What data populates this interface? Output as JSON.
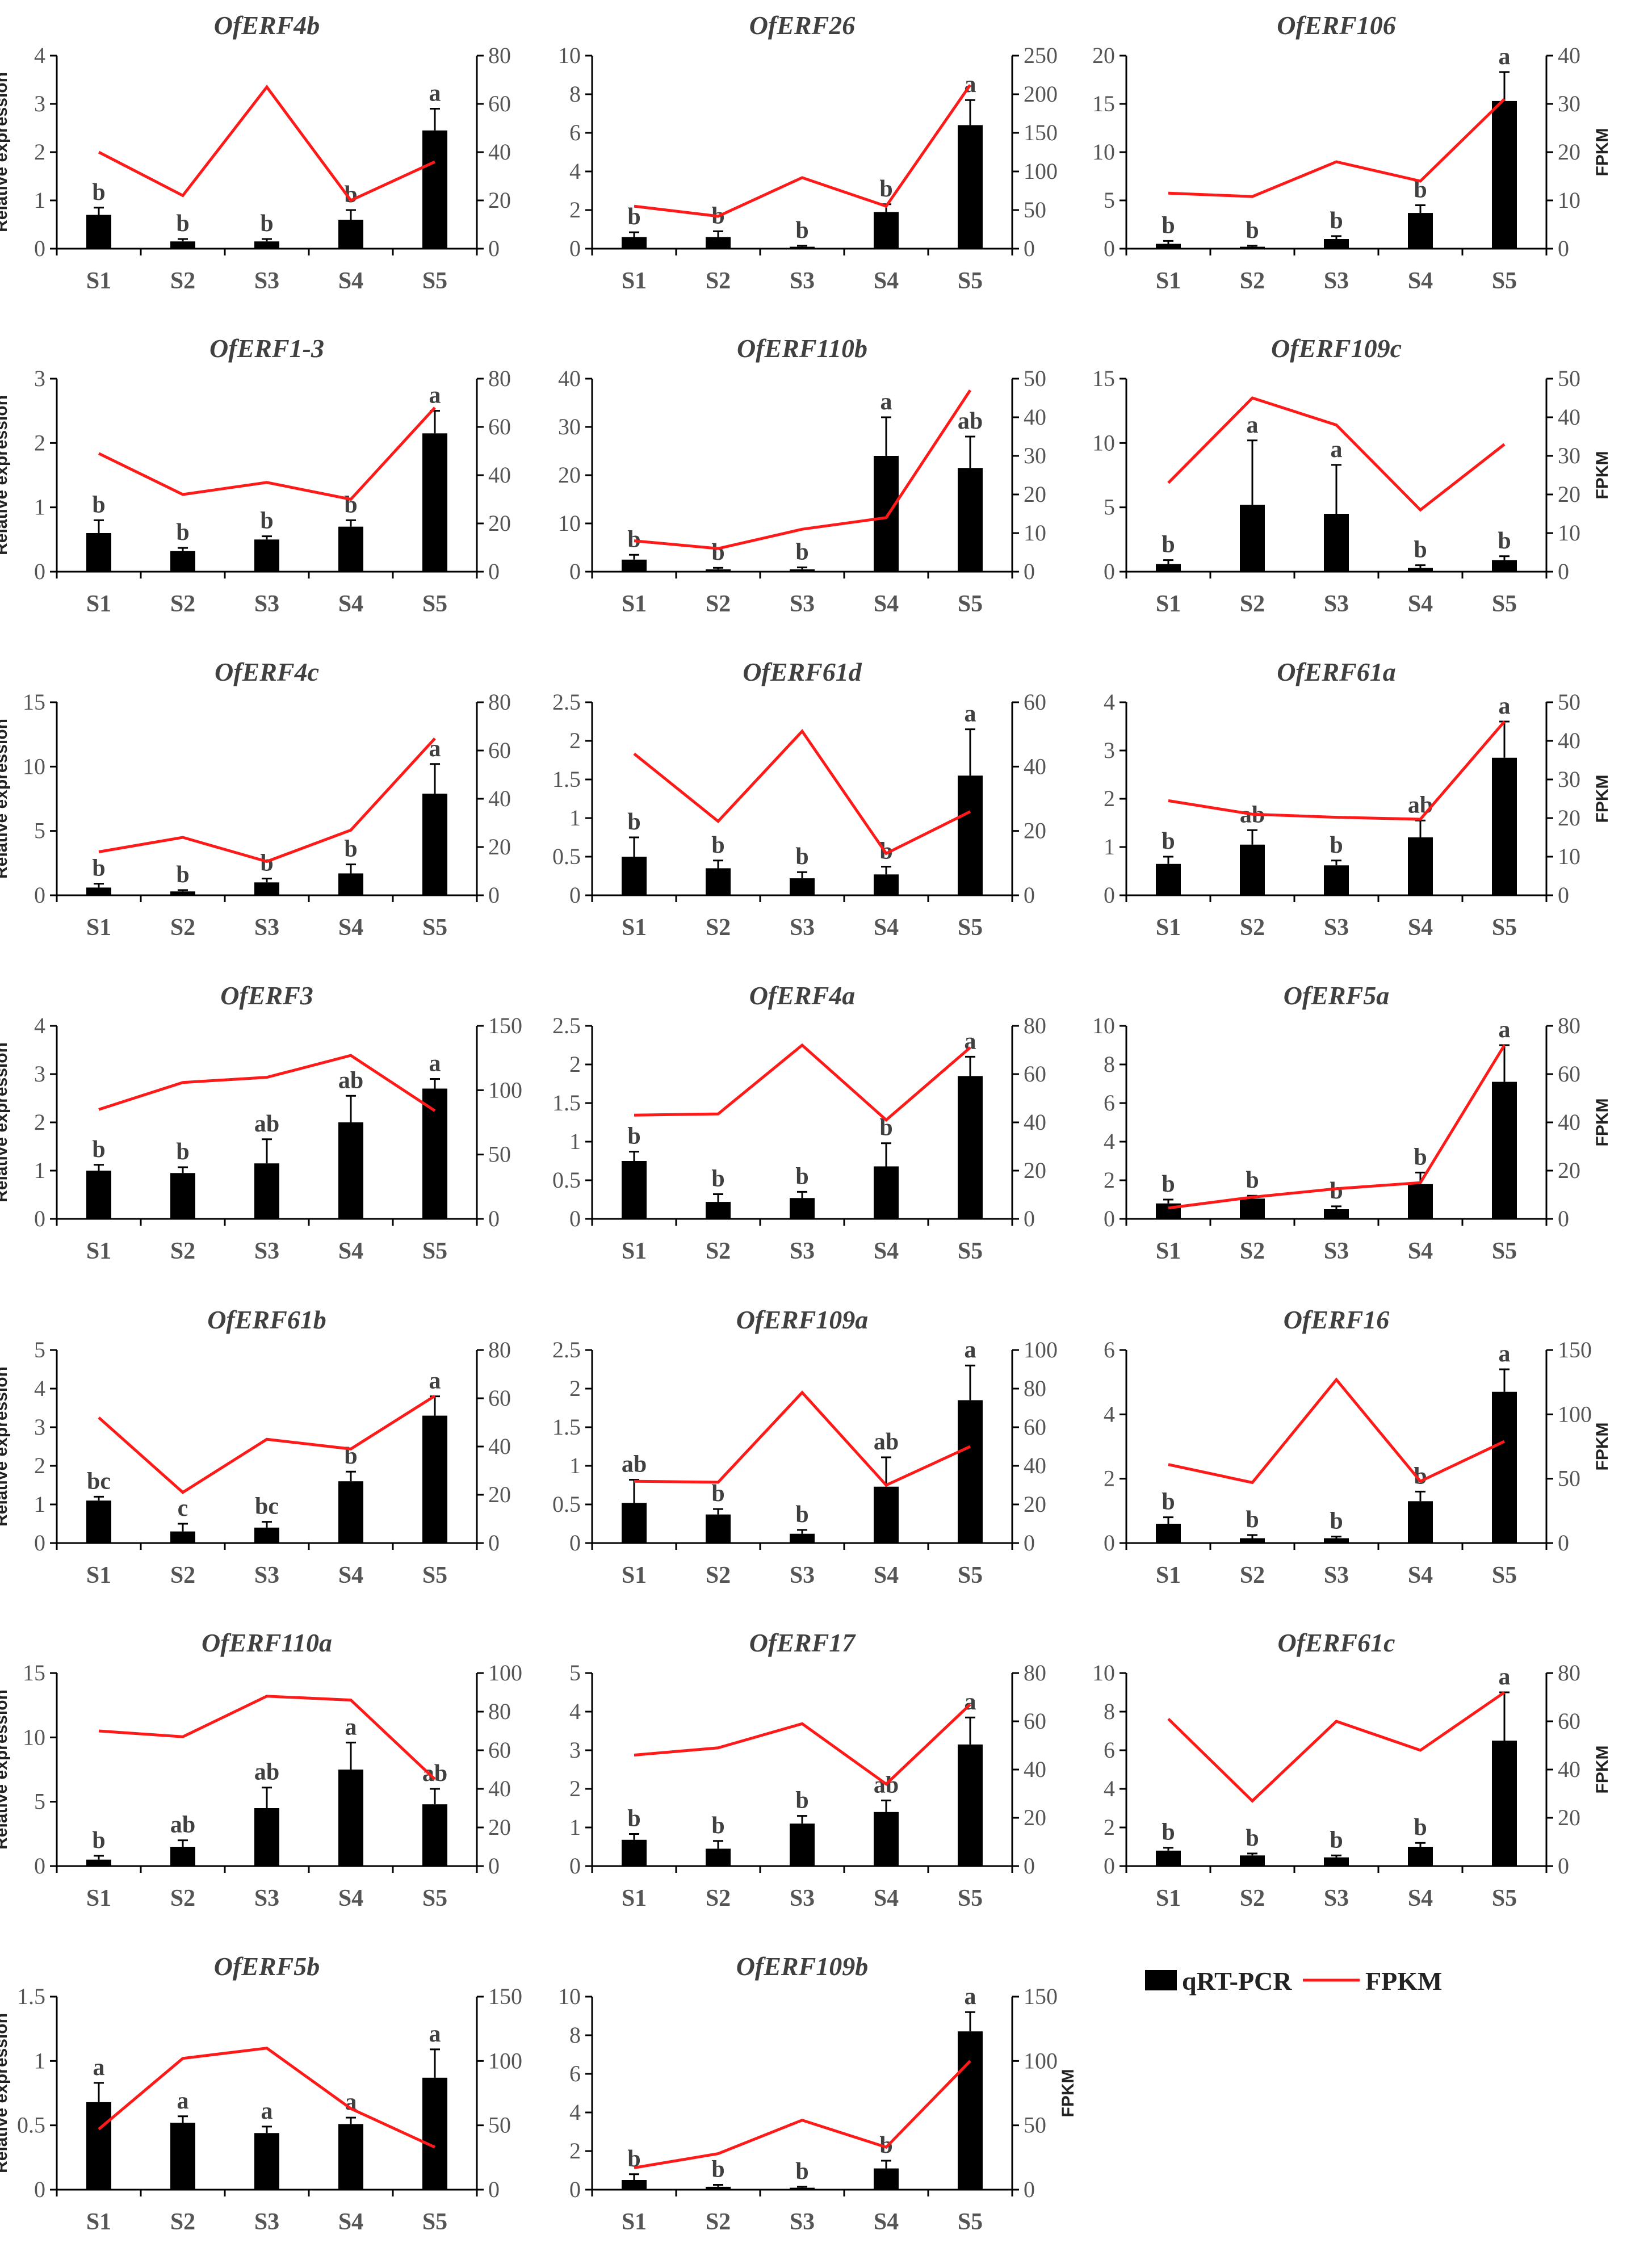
{
  "legend": {
    "bar_label": "qRT-PCR",
    "line_label": "FPKM"
  },
  "colors": {
    "bar": "#000000",
    "line": "#ff1a1a",
    "axis": "#000000"
  },
  "chart_data": [
    {
      "type": "bar+line",
      "title": "OfERF4b",
      "categories": [
        "S1",
        "S2",
        "S3",
        "S4",
        "S5"
      ],
      "bar_values": [
        0.7,
        0.15,
        0.15,
        0.6,
        2.45
      ],
      "bar_errors": [
        0.15,
        0.05,
        0.05,
        0.2,
        0.45
      ],
      "letters": [
        "b",
        "b",
        "b",
        "b",
        "a"
      ],
      "line_values": [
        40,
        22,
        67,
        20,
        36
      ],
      "ylim": [
        0,
        4
      ],
      "yticks": [
        0,
        1,
        2,
        3,
        4
      ],
      "y2lim": [
        0,
        80
      ],
      "y2ticks": [
        0,
        20,
        40,
        60,
        80
      ],
      "ylabel": "Relative expression",
      "y2label": ""
    },
    {
      "type": "bar+line",
      "title": "OfERF26",
      "categories": [
        "S1",
        "S2",
        "S3",
        "S4",
        "S5"
      ],
      "bar_values": [
        0.6,
        0.6,
        0.1,
        1.9,
        6.4
      ],
      "bar_errors": [
        0.25,
        0.3,
        0.05,
        0.4,
        1.3
      ],
      "letters": [
        "b",
        "b",
        "b",
        "b",
        "a"
      ],
      "line_values": [
        55,
        42,
        92,
        55,
        212
      ],
      "ylim": [
        0,
        10
      ],
      "yticks": [
        0,
        2,
        4,
        6,
        8,
        10
      ],
      "y2lim": [
        0,
        250
      ],
      "y2ticks": [
        0,
        50,
        100,
        150,
        200,
        250
      ],
      "ylabel": "",
      "y2label": ""
    },
    {
      "type": "bar+line",
      "title": "OfERF106",
      "categories": [
        "S1",
        "S2",
        "S3",
        "S4",
        "S5"
      ],
      "bar_values": [
        0.5,
        0.2,
        1.0,
        3.7,
        15.3
      ],
      "bar_errors": [
        0.3,
        0.1,
        0.3,
        0.8,
        3.0
      ],
      "letters": [
        "b",
        "b",
        "b",
        "b",
        "a"
      ],
      "line_values": [
        11.5,
        10.8,
        18,
        14,
        31
      ],
      "ylim": [
        0,
        20
      ],
      "yticks": [
        0,
        5,
        10,
        15,
        20
      ],
      "y2lim": [
        0,
        40
      ],
      "y2ticks": [
        0,
        10,
        20,
        30,
        40
      ],
      "ylabel": "",
      "y2label": "FPKM"
    },
    {
      "type": "bar+line",
      "title": "OfERF1-3",
      "categories": [
        "S1",
        "S2",
        "S3",
        "S4",
        "S5"
      ],
      "bar_values": [
        0.6,
        0.32,
        0.5,
        0.7,
        2.15
      ],
      "bar_errors": [
        0.2,
        0.05,
        0.05,
        0.1,
        0.35
      ],
      "letters": [
        "b",
        "b",
        "b",
        "b",
        "a"
      ],
      "line_values": [
        49,
        32,
        37,
        30,
        68
      ],
      "ylim": [
        0,
        3
      ],
      "yticks": [
        0,
        1,
        2,
        3
      ],
      "y2lim": [
        0,
        80
      ],
      "y2ticks": [
        0,
        20,
        40,
        60,
        80
      ],
      "ylabel": "Relative expression",
      "y2label": ""
    },
    {
      "type": "bar+line",
      "title": "OfERF110b",
      "categories": [
        "S1",
        "S2",
        "S3",
        "S4",
        "S5"
      ],
      "bar_values": [
        2.5,
        0.5,
        0.5,
        24,
        21.5
      ],
      "bar_errors": [
        1.0,
        0.3,
        0.4,
        8,
        6.5
      ],
      "letters": [
        "b",
        "b",
        "b",
        "a",
        "ab"
      ],
      "line_values": [
        8,
        6,
        11,
        14,
        47
      ],
      "ylim": [
        0,
        40
      ],
      "yticks": [
        0,
        10,
        20,
        30,
        40
      ],
      "y2lim": [
        0,
        50
      ],
      "y2ticks": [
        0,
        10,
        20,
        30,
        40,
        50
      ],
      "ylabel": "",
      "y2label": ""
    },
    {
      "type": "bar+line",
      "title": "OfERF109c",
      "categories": [
        "S1",
        "S2",
        "S3",
        "S4",
        "S5"
      ],
      "bar_values": [
        0.6,
        5.2,
        4.5,
        0.3,
        0.9
      ],
      "bar_errors": [
        0.3,
        5.0,
        3.8,
        0.2,
        0.3
      ],
      "letters": [
        "b",
        "a",
        "a",
        "b",
        "b"
      ],
      "line_values": [
        23,
        45,
        38,
        16,
        33
      ],
      "ylim": [
        0,
        15
      ],
      "yticks": [
        0,
        5,
        10,
        15
      ],
      "y2lim": [
        0,
        50
      ],
      "y2ticks": [
        0,
        10,
        20,
        30,
        40,
        50
      ],
      "ylabel": "",
      "y2label": "FPKM"
    },
    {
      "type": "bar+line",
      "title": "OfERF4c",
      "categories": [
        "S1",
        "S2",
        "S3",
        "S4",
        "S5"
      ],
      "bar_values": [
        0.6,
        0.3,
        1.0,
        1.7,
        7.9
      ],
      "bar_errors": [
        0.3,
        0.1,
        0.3,
        0.7,
        2.3
      ],
      "letters": [
        "b",
        "b",
        "b",
        "b",
        "a"
      ],
      "line_values": [
        18,
        24,
        14,
        27,
        65
      ],
      "ylim": [
        0,
        15
      ],
      "yticks": [
        0,
        5,
        10,
        15
      ],
      "y2lim": [
        0,
        80
      ],
      "y2ticks": [
        0,
        20,
        40,
        60,
        80
      ],
      "ylabel": "Relative expression",
      "y2label": ""
    },
    {
      "type": "bar+line",
      "title": "OfERF61d",
      "categories": [
        "S1",
        "S2",
        "S3",
        "S4",
        "S5"
      ],
      "bar_values": [
        0.5,
        0.35,
        0.22,
        0.27,
        1.55
      ],
      "bar_errors": [
        0.25,
        0.1,
        0.08,
        0.1,
        0.6
      ],
      "letters": [
        "b",
        "b",
        "b",
        "b",
        "a"
      ],
      "line_values": [
        44,
        23,
        51,
        13,
        26
      ],
      "ylim": [
        0,
        2.5
      ],
      "yticks": [
        0,
        0.5,
        1,
        1.5,
        2,
        2.5
      ],
      "y2lim": [
        0,
        60
      ],
      "y2ticks": [
        0,
        20,
        40,
        60
      ],
      "ylabel": "",
      "y2label": ""
    },
    {
      "type": "bar+line",
      "title": "OfERF61a",
      "categories": [
        "S1",
        "S2",
        "S3",
        "S4",
        "S5"
      ],
      "bar_values": [
        0.65,
        1.05,
        0.62,
        1.2,
        2.85
      ],
      "bar_errors": [
        0.15,
        0.3,
        0.1,
        0.35,
        0.75
      ],
      "letters": [
        "b",
        "ab",
        "b",
        "ab",
        "a"
      ],
      "line_values": [
        24.5,
        21,
        20.2,
        19.7,
        45
      ],
      "ylim": [
        0,
        4
      ],
      "yticks": [
        0,
        1,
        2,
        3,
        4
      ],
      "y2lim": [
        0,
        50
      ],
      "y2ticks": [
        0,
        10,
        20,
        30,
        40,
        50
      ],
      "ylabel": "",
      "y2label": "FPKM"
    },
    {
      "type": "bar+line",
      "title": "OfERF3",
      "categories": [
        "S1",
        "S2",
        "S3",
        "S4",
        "S5"
      ],
      "bar_values": [
        1.0,
        0.95,
        1.15,
        2.0,
        2.7
      ],
      "bar_errors": [
        0.12,
        0.12,
        0.5,
        0.55,
        0.2
      ],
      "letters": [
        "b",
        "b",
        "ab",
        "ab",
        "a"
      ],
      "line_values": [
        85,
        106,
        110,
        127,
        84
      ],
      "ylim": [
        0,
        4
      ],
      "yticks": [
        0,
        1,
        2,
        3,
        4
      ],
      "y2lim": [
        0,
        150
      ],
      "y2ticks": [
        0,
        50,
        100,
        150
      ],
      "ylabel": "Relative expression",
      "y2label": ""
    },
    {
      "type": "bar+line",
      "title": "OfERF4a",
      "categories": [
        "S1",
        "S2",
        "S3",
        "S4",
        "S5"
      ],
      "bar_values": [
        0.75,
        0.22,
        0.27,
        0.68,
        1.85
      ],
      "bar_errors": [
        0.12,
        0.1,
        0.08,
        0.3,
        0.25
      ],
      "letters": [
        "b",
        "b",
        "b",
        "b",
        "a"
      ],
      "line_values": [
        43,
        43.5,
        72,
        41,
        71
      ],
      "ylim": [
        0,
        2.5
      ],
      "yticks": [
        0,
        0.5,
        1,
        1.5,
        2,
        2.5
      ],
      "y2lim": [
        0,
        80
      ],
      "y2ticks": [
        0,
        20,
        40,
        60,
        80
      ],
      "ylabel": "",
      "y2label": ""
    },
    {
      "type": "bar+line",
      "title": "OfERF5a",
      "categories": [
        "S1",
        "S2",
        "S3",
        "S4",
        "S5"
      ],
      "bar_values": [
        0.8,
        1.05,
        0.5,
        1.8,
        7.1
      ],
      "bar_errors": [
        0.2,
        0.15,
        0.15,
        0.6,
        1.9
      ],
      "letters": [
        "b",
        "b",
        "b",
        "b",
        "a"
      ],
      "line_values": [
        4.5,
        9,
        12.5,
        15,
        72
      ],
      "ylim": [
        0,
        10
      ],
      "yticks": [
        0,
        2,
        4,
        6,
        8,
        10
      ],
      "y2lim": [
        0,
        80
      ],
      "y2ticks": [
        0,
        20,
        40,
        60,
        80
      ],
      "ylabel": "",
      "y2label": "FPKM"
    },
    {
      "type": "bar+line",
      "title": "OfERF61b",
      "categories": [
        "S1",
        "S2",
        "S3",
        "S4",
        "S5"
      ],
      "bar_values": [
        1.1,
        0.3,
        0.4,
        1.6,
        3.3
      ],
      "bar_errors": [
        0.1,
        0.2,
        0.15,
        0.25,
        0.5
      ],
      "letters": [
        "bc",
        "c",
        "bc",
        "b",
        "a"
      ],
      "line_values": [
        52,
        21,
        43,
        39,
        61
      ],
      "ylim": [
        0,
        5
      ],
      "yticks": [
        0,
        1,
        2,
        3,
        4,
        5
      ],
      "y2lim": [
        0,
        80
      ],
      "y2ticks": [
        0,
        20,
        40,
        60,
        80
      ],
      "ylabel": "Relative expression",
      "y2label": ""
    },
    {
      "type": "bar+line",
      "title": "OfERF109a",
      "categories": [
        "S1",
        "S2",
        "S3",
        "S4",
        "S5"
      ],
      "bar_values": [
        0.52,
        0.37,
        0.12,
        0.73,
        1.85
      ],
      "bar_errors": [
        0.3,
        0.07,
        0.05,
        0.38,
        0.45
      ],
      "letters": [
        "ab",
        "b",
        "b",
        "ab",
        "a"
      ],
      "line_values": [
        32,
        31.5,
        78,
        30,
        50
      ],
      "ylim": [
        0,
        2.5
      ],
      "yticks": [
        0,
        0.5,
        1,
        1.5,
        2,
        2.5
      ],
      "y2lim": [
        0,
        100
      ],
      "y2ticks": [
        0,
        20,
        40,
        60,
        80,
        100
      ],
      "ylabel": "",
      "y2label": ""
    },
    {
      "type": "bar+line",
      "title": "OfERF16",
      "categories": [
        "S1",
        "S2",
        "S3",
        "S4",
        "S5"
      ],
      "bar_values": [
        0.6,
        0.15,
        0.15,
        1.3,
        4.7
      ],
      "bar_errors": [
        0.2,
        0.1,
        0.05,
        0.3,
        0.7
      ],
      "letters": [
        "b",
        "b",
        "b",
        "b",
        "a"
      ],
      "line_values": [
        61,
        47,
        127,
        48,
        79
      ],
      "ylim": [
        0,
        6
      ],
      "yticks": [
        0,
        2,
        4,
        6
      ],
      "y2lim": [
        0,
        150
      ],
      "y2ticks": [
        0,
        50,
        100,
        150
      ],
      "ylabel": "",
      "y2label": "FPKM"
    },
    {
      "type": "bar+line",
      "title": "OfERF110a",
      "categories": [
        "S1",
        "S2",
        "S3",
        "S4",
        "S5"
      ],
      "bar_values": [
        0.5,
        1.5,
        4.5,
        7.5,
        4.8
      ],
      "bar_errors": [
        0.3,
        0.5,
        1.6,
        2.1,
        1.2
      ],
      "letters": [
        "b",
        "ab",
        "ab",
        "a",
        "ab"
      ],
      "line_values": [
        70,
        67,
        88,
        86,
        45
      ],
      "ylim": [
        0,
        15
      ],
      "yticks": [
        0,
        5,
        10,
        15
      ],
      "y2lim": [
        0,
        100
      ],
      "y2ticks": [
        0,
        20,
        40,
        60,
        80,
        100
      ],
      "ylabel": "Relative expression",
      "y2label": ""
    },
    {
      "type": "bar+line",
      "title": "OfERF17",
      "categories": [
        "S1",
        "S2",
        "S3",
        "S4",
        "S5"
      ],
      "bar_values": [
        0.68,
        0.45,
        1.1,
        1.4,
        3.15
      ],
      "bar_errors": [
        0.15,
        0.2,
        0.2,
        0.3,
        0.7
      ],
      "letters": [
        "b",
        "b",
        "b",
        "ab",
        "a"
      ],
      "line_values": [
        46,
        49,
        59,
        34,
        67
      ],
      "ylim": [
        0,
        5
      ],
      "yticks": [
        0,
        1,
        2,
        3,
        4,
        5
      ],
      "y2lim": [
        0,
        80
      ],
      "y2ticks": [
        0,
        20,
        40,
        60,
        80
      ],
      "ylabel": "",
      "y2label": ""
    },
    {
      "type": "bar+line",
      "title": "OfERF61c",
      "categories": [
        "S1",
        "S2",
        "S3",
        "S4",
        "S5"
      ],
      "bar_values": [
        0.8,
        0.55,
        0.45,
        1.0,
        6.5
      ],
      "bar_errors": [
        0.15,
        0.1,
        0.1,
        0.2,
        2.5
      ],
      "letters": [
        "b",
        "b",
        "b",
        "b",
        "a"
      ],
      "line_values": [
        61,
        27,
        60,
        48,
        72
      ],
      "ylim": [
        0,
        10
      ],
      "yticks": [
        0,
        2,
        4,
        6,
        8,
        10
      ],
      "y2lim": [
        0,
        80
      ],
      "y2ticks": [
        0,
        20,
        40,
        60,
        80
      ],
      "ylabel": "",
      "y2label": "FPKM"
    },
    {
      "type": "bar+line",
      "title": "OfERF5b",
      "categories": [
        "S1",
        "S2",
        "S3",
        "S4",
        "S5"
      ],
      "bar_values": [
        0.68,
        0.52,
        0.44,
        0.51,
        0.87
      ],
      "bar_errors": [
        0.15,
        0.05,
        0.05,
        0.05,
        0.22
      ],
      "letters": [
        "a",
        "a",
        "a",
        "a",
        "a"
      ],
      "line_values": [
        47,
        102,
        110,
        63,
        33
      ],
      "ylim": [
        0,
        1.5
      ],
      "yticks": [
        0,
        0.5,
        1,
        1.5
      ],
      "y2lim": [
        0,
        150
      ],
      "y2ticks": [
        0,
        50,
        100,
        150
      ],
      "ylabel": "Relative expression",
      "y2label": ""
    },
    {
      "type": "bar+line",
      "title": "OfERF109b",
      "categories": [
        "S1",
        "S2",
        "S3",
        "S4",
        "S5"
      ],
      "bar_values": [
        0.5,
        0.15,
        0.1,
        1.1,
        8.2
      ],
      "bar_errors": [
        0.3,
        0.1,
        0.05,
        0.4,
        1.0
      ],
      "letters": [
        "b",
        "b",
        "b",
        "b",
        "a"
      ],
      "line_values": [
        17,
        28,
        54,
        33,
        100
      ],
      "ylim": [
        0,
        10
      ],
      "yticks": [
        0,
        2,
        4,
        6,
        8,
        10
      ],
      "y2lim": [
        0,
        150
      ],
      "y2ticks": [
        0,
        50,
        100,
        150
      ],
      "ylabel": "",
      "y2label": "FPKM"
    }
  ]
}
